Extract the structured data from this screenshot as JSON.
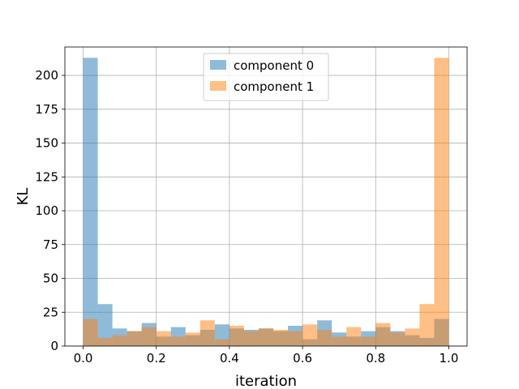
{
  "chart_data": {
    "type": "bar",
    "histogram": true,
    "xlabel": "iteration",
    "ylabel": "KL",
    "xlim": [
      -0.05,
      1.05
    ],
    "ylim": [
      0,
      221
    ],
    "x_ticks": [
      0.0,
      0.2,
      0.4,
      0.6,
      0.8,
      1.0
    ],
    "x_tick_labels": [
      "0.0",
      "0.2",
      "0.4",
      "0.6",
      "0.8",
      "1.0"
    ],
    "y_ticks": [
      0,
      25,
      50,
      75,
      100,
      125,
      150,
      175,
      200
    ],
    "y_tick_labels": [
      "0",
      "25",
      "50",
      "75",
      "100",
      "125",
      "150",
      "175",
      "200"
    ],
    "grid": true,
    "legend_position": "top-center",
    "bin_edges": [
      0.0,
      0.04,
      0.08,
      0.12,
      0.16,
      0.2,
      0.24,
      0.28,
      0.32,
      0.36,
      0.4,
      0.44,
      0.48,
      0.52,
      0.56,
      0.6,
      0.64,
      0.68,
      0.72,
      0.76,
      0.8,
      0.84,
      0.88,
      0.92,
      0.96,
      1.0
    ],
    "series": [
      {
        "name": "component 0",
        "color": "#1f77b4",
        "opacity": 0.5,
        "values": [
          213,
          31,
          13,
          11,
          17,
          7,
          14,
          8,
          12,
          16,
          13,
          12,
          13,
          11,
          15,
          5,
          19,
          10,
          7,
          11,
          14,
          11,
          8,
          6,
          20
        ]
      },
      {
        "name": "component 1",
        "color": "#ff7f0e",
        "opacity": 0.5,
        "values": [
          20,
          6,
          8,
          11,
          14,
          11,
          7,
          10,
          19,
          5,
          15,
          11,
          13,
          12,
          11,
          16,
          12,
          7,
          14,
          7,
          17,
          10,
          13,
          31,
          213
        ]
      }
    ]
  }
}
